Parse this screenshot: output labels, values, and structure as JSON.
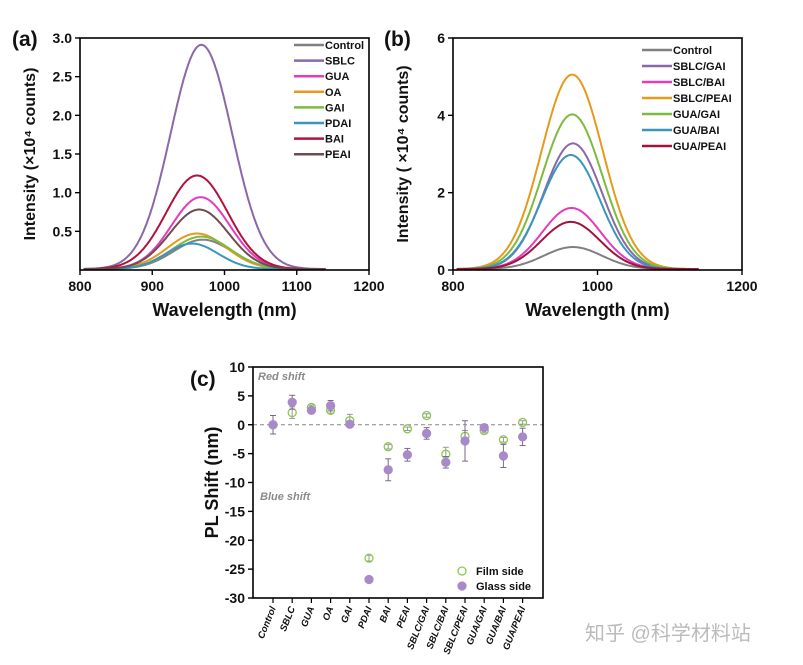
{
  "chart_data": [
    {
      "panel_label": "(a)",
      "type": "line",
      "xlabel": "Wavelength (nm)",
      "ylabel": "Intensity (×10⁴ counts)",
      "xlim": [
        800,
        1200
      ],
      "ylim": [
        0,
        3.0
      ],
      "xticks": [
        "800",
        "900",
        "1000",
        "1100",
        "1200"
      ],
      "yticks": [
        "0.5",
        "1.0",
        "1.5",
        "2.0",
        "2.5",
        "3.0"
      ],
      "legend_position": "top-right",
      "grid": false,
      "series": [
        {
          "name": "Control",
          "color": "#808080",
          "peak_nm": 970,
          "peak_intensity": 0.38,
          "fwhm_nm": 95
        },
        {
          "name": "SBLC",
          "color": "#8a68a8",
          "peak_nm": 968,
          "peak_intensity": 2.9,
          "fwhm_nm": 100
        },
        {
          "name": "GUA",
          "color": "#e53bbd",
          "peak_nm": 967,
          "peak_intensity": 0.93,
          "fwhm_nm": 95
        },
        {
          "name": "OA",
          "color": "#e59a1c",
          "peak_nm": 962,
          "peak_intensity": 0.46,
          "fwhm_nm": 95
        },
        {
          "name": "GAI",
          "color": "#7dbb3f",
          "peak_nm": 968,
          "peak_intensity": 0.42,
          "fwhm_nm": 95
        },
        {
          "name": "PDAI",
          "color": "#3a96bd",
          "peak_nm": 955,
          "peak_intensity": 0.33,
          "fwhm_nm": 85
        },
        {
          "name": "BAI",
          "color": "#b0143c",
          "peak_nm": 962,
          "peak_intensity": 1.21,
          "fwhm_nm": 100
        },
        {
          "name": "PEAI",
          "color": "#6e4c52",
          "peak_nm": 965,
          "peak_intensity": 0.77,
          "fwhm_nm": 95
        }
      ]
    },
    {
      "panel_label": "(b)",
      "type": "line",
      "xlabel": "Wavelength (nm)",
      "ylabel": "Intensity ( ×10⁴ counts)",
      "xlim": [
        800,
        1200
      ],
      "ylim": [
        0,
        6
      ],
      "xticks": [
        "800",
        "1000",
        "1200"
      ],
      "yticks": [
        "0",
        "2",
        "4",
        "6"
      ],
      "legend_position": "top-right",
      "grid": false,
      "series": [
        {
          "name": "Control",
          "color": "#808080",
          "peak_nm": 966,
          "peak_intensity": 0.57,
          "fwhm_nm": 95
        },
        {
          "name": "SBLC/GAI",
          "color": "#8a68a8",
          "peak_nm": 966,
          "peak_intensity": 3.25,
          "fwhm_nm": 95
        },
        {
          "name": "SBLC/BAI",
          "color": "#e53bbd",
          "peak_nm": 964,
          "peak_intensity": 1.58,
          "fwhm_nm": 95
        },
        {
          "name": "SBLC/PEAI",
          "color": "#e59a1c",
          "peak_nm": 965,
          "peak_intensity": 5.03,
          "fwhm_nm": 100
        },
        {
          "name": "GUA/GAI",
          "color": "#7dbb3f",
          "peak_nm": 965,
          "peak_intensity": 4.0,
          "fwhm_nm": 98
        },
        {
          "name": "GUA/BAI",
          "color": "#3a96bd",
          "peak_nm": 963,
          "peak_intensity": 2.95,
          "fwhm_nm": 95
        },
        {
          "name": "GUA/PEAI",
          "color": "#a0143c",
          "peak_nm": 963,
          "peak_intensity": 1.22,
          "fwhm_nm": 95
        }
      ]
    },
    {
      "panel_label": "(c)",
      "type": "scatter",
      "ylabel": "PL Shift (nm)",
      "ylim": [
        -30,
        10
      ],
      "yticks": [
        "-30",
        "-25",
        "-20",
        "-15",
        "-10",
        "-5",
        "0",
        "5",
        "10"
      ],
      "annotations": [
        "Red shift",
        "Blue shift"
      ],
      "reference_line": 0,
      "legend_position": "bottom-right",
      "grid": false,
      "categories": [
        "Control",
        "SBLC",
        "GUA",
        "OA",
        "GAI",
        "PDAI",
        "BAI",
        "PEAI",
        "SBLC/GAI",
        "SBLC/BAI",
        "SBLC/PEAI",
        "GUA/GAI",
        "GUA/BAI",
        "GUA/PEAI"
      ],
      "series": [
        {
          "name": "Film side",
          "color": "#8cc850",
          "marker": "open-circle",
          "values": [
            0,
            2.1,
            3.0,
            2.5,
            0.7,
            -23.1,
            -3.8,
            -0.7,
            1.6,
            -5.1,
            -2.0,
            -1.0,
            -2.6,
            0.4
          ],
          "errors": [
            1.6,
            1.0,
            0.4,
            0.5,
            1.1,
            0.5,
            0.4,
            0.3,
            0.3,
            1.2,
            1.0,
            0.4,
            0.4,
            0.3
          ]
        },
        {
          "name": "Glass side",
          "color": "#a98ac8",
          "marker": "filled-circle",
          "values": [
            0,
            3.9,
            2.5,
            3.3,
            0.1,
            -26.8,
            -7.8,
            -5.2,
            -1.5,
            -6.5,
            -2.8,
            -0.5,
            -5.4,
            -2.1
          ],
          "errors": [
            1.6,
            1.2,
            0.3,
            0.9,
            0.4,
            0.3,
            1.9,
            1.1,
            1.0,
            1.0,
            3.5,
            0.4,
            2.0,
            1.5
          ]
        }
      ]
    }
  ],
  "watermark": "知乎 @科学材料站"
}
